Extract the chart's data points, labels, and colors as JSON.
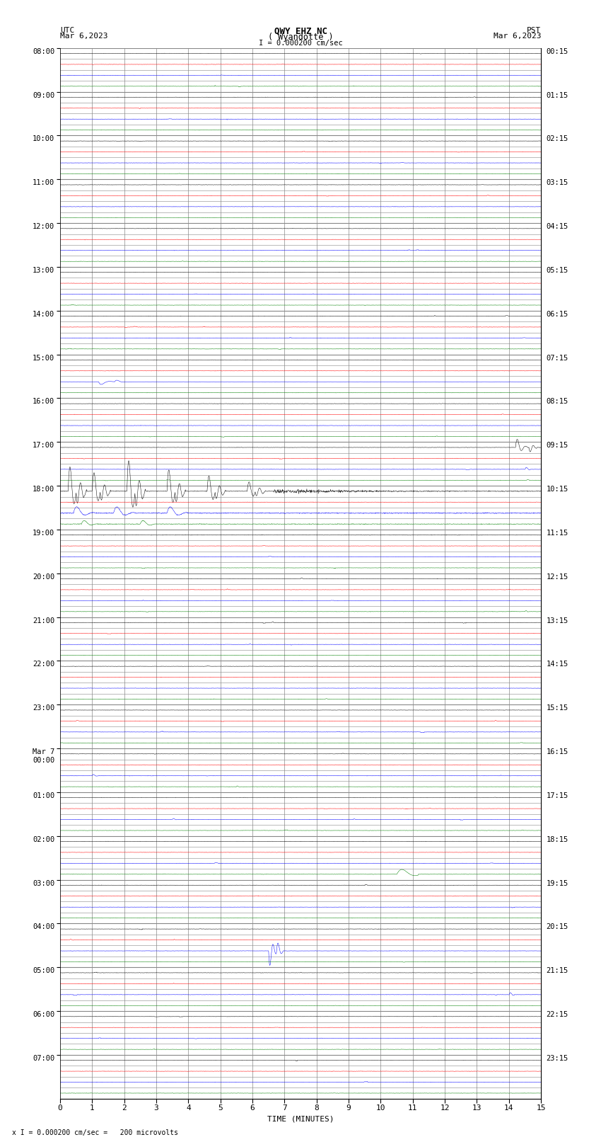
{
  "title_line1": "QWY EHZ NC",
  "title_line2": "( Wyandotte )",
  "scale_label": "I = 0.000200 cm/sec",
  "xlabel": "TIME (MINUTES)",
  "footer": "x I = 0.000200 cm/sec =   200 microvolts",
  "xlim": [
    0,
    15
  ],
  "xticks": [
    0,
    1,
    2,
    3,
    4,
    5,
    6,
    7,
    8,
    9,
    10,
    11,
    12,
    13,
    14,
    15
  ],
  "background_color": "#ffffff",
  "grid_color": "#888888",
  "trace_colors": [
    "black",
    "red",
    "blue",
    "green"
  ],
  "utc_times": [
    "08:00",
    "09:00",
    "10:00",
    "11:00",
    "12:00",
    "13:00",
    "14:00",
    "15:00",
    "16:00",
    "17:00",
    "18:00",
    "19:00",
    "20:00",
    "21:00",
    "22:00",
    "23:00",
    "Mar 7\n00:00",
    "01:00",
    "02:00",
    "03:00",
    "04:00",
    "05:00",
    "06:00",
    "07:00"
  ],
  "pst_times": [
    "00:15",
    "01:15",
    "02:15",
    "03:15",
    "04:15",
    "05:15",
    "06:15",
    "07:15",
    "08:15",
    "09:15",
    "10:15",
    "11:15",
    "12:15",
    "13:15",
    "14:15",
    "15:15",
    "16:15",
    "17:15",
    "18:15",
    "19:15",
    "20:15",
    "21:15",
    "22:15",
    "23:15"
  ],
  "lines_per_hour": 4,
  "num_hours": 24,
  "noise_std": 0.018,
  "trace_scale": 0.38
}
